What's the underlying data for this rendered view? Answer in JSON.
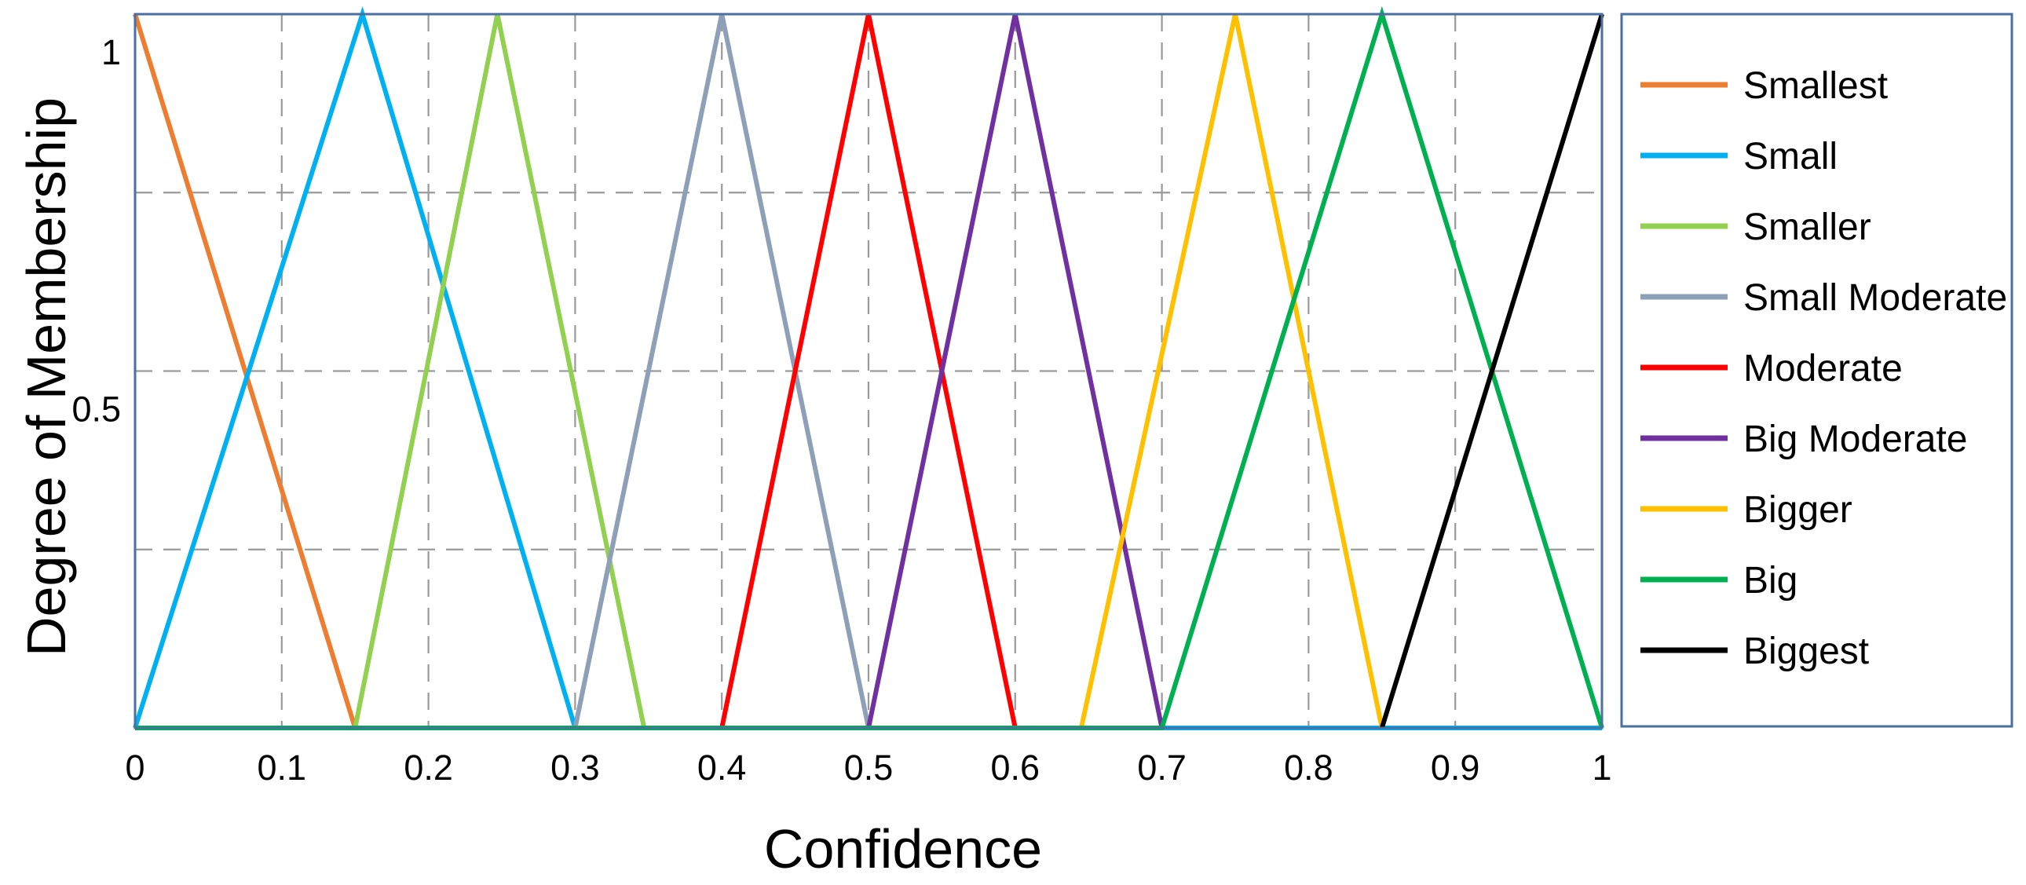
{
  "chart_data": {
    "type": "line",
    "title": "",
    "xlabel": "Confidence",
    "ylabel": "Degree of Membership",
    "xlim": [
      0,
      1
    ],
    "ylim": [
      0,
      1
    ],
    "grid": true,
    "legend_position": "right",
    "xticks": [
      {
        "value": 0,
        "label": "0"
      },
      {
        "value": 0.1,
        "label": "0.1"
      },
      {
        "value": 0.2,
        "label": "0.2"
      },
      {
        "value": 0.3,
        "label": "0.3"
      },
      {
        "value": 0.4,
        "label": "0.4"
      },
      {
        "value": 0.5,
        "label": "0.5"
      },
      {
        "value": 0.6,
        "label": "0.6"
      },
      {
        "value": 0.7,
        "label": "0.7"
      },
      {
        "value": 0.8,
        "label": "0.8"
      },
      {
        "value": 0.9,
        "label": "0.9"
      },
      {
        "value": 1,
        "label": "1"
      }
    ],
    "yticks": [
      {
        "value": 0.5,
        "label": "0.5"
      },
      {
        "value": 1,
        "label": "1"
      }
    ],
    "xgrid": [
      0.1,
      0.2,
      0.3,
      0.4,
      0.5,
      0.6,
      0.7,
      0.8,
      0.9
    ],
    "ygrid": [
      0.25,
      0.5,
      0.75
    ],
    "series": [
      {
        "name": "Smallest",
        "color": "#ED7D31",
        "x": [
          0,
          0.15,
          1
        ],
        "y": [
          1,
          0,
          0
        ]
      },
      {
        "name": "Small",
        "color": "#00B0F0",
        "x": [
          0,
          0.155,
          0.3,
          1
        ],
        "y": [
          0,
          1,
          0,
          0
        ]
      },
      {
        "name": "Smaller",
        "color": "#92D050",
        "x": [
          0.15,
          0.247,
          0.347
        ],
        "y": [
          0,
          1,
          0
        ]
      },
      {
        "name": "Small Moderate",
        "color": "#8EA0B8",
        "x": [
          0.3,
          0.4,
          0.5
        ],
        "y": [
          0,
          1,
          0
        ]
      },
      {
        "name": "Moderate",
        "color": "#FF0000",
        "x": [
          0,
          0.4,
          0.5,
          0.6
        ],
        "y": [
          0,
          0,
          1,
          0
        ]
      },
      {
        "name": "Big Moderate",
        "color": "#7030A0",
        "x": [
          0.5,
          0.6,
          0.7
        ],
        "y": [
          0,
          1,
          0
        ]
      },
      {
        "name": "Bigger",
        "color": "#FFC000",
        "x": [
          0.645,
          0.75,
          0.85
        ],
        "y": [
          0,
          1,
          0
        ]
      },
      {
        "name": "Big",
        "color": "#00B050",
        "x": [
          0,
          0.5,
          0.7,
          0.85,
          1
        ],
        "y": [
          0,
          0,
          0,
          1,
          0
        ]
      },
      {
        "name": "Biggest",
        "color": "#000000",
        "x": [
          0.85,
          1
        ],
        "y": [
          0,
          1
        ]
      }
    ]
  }
}
